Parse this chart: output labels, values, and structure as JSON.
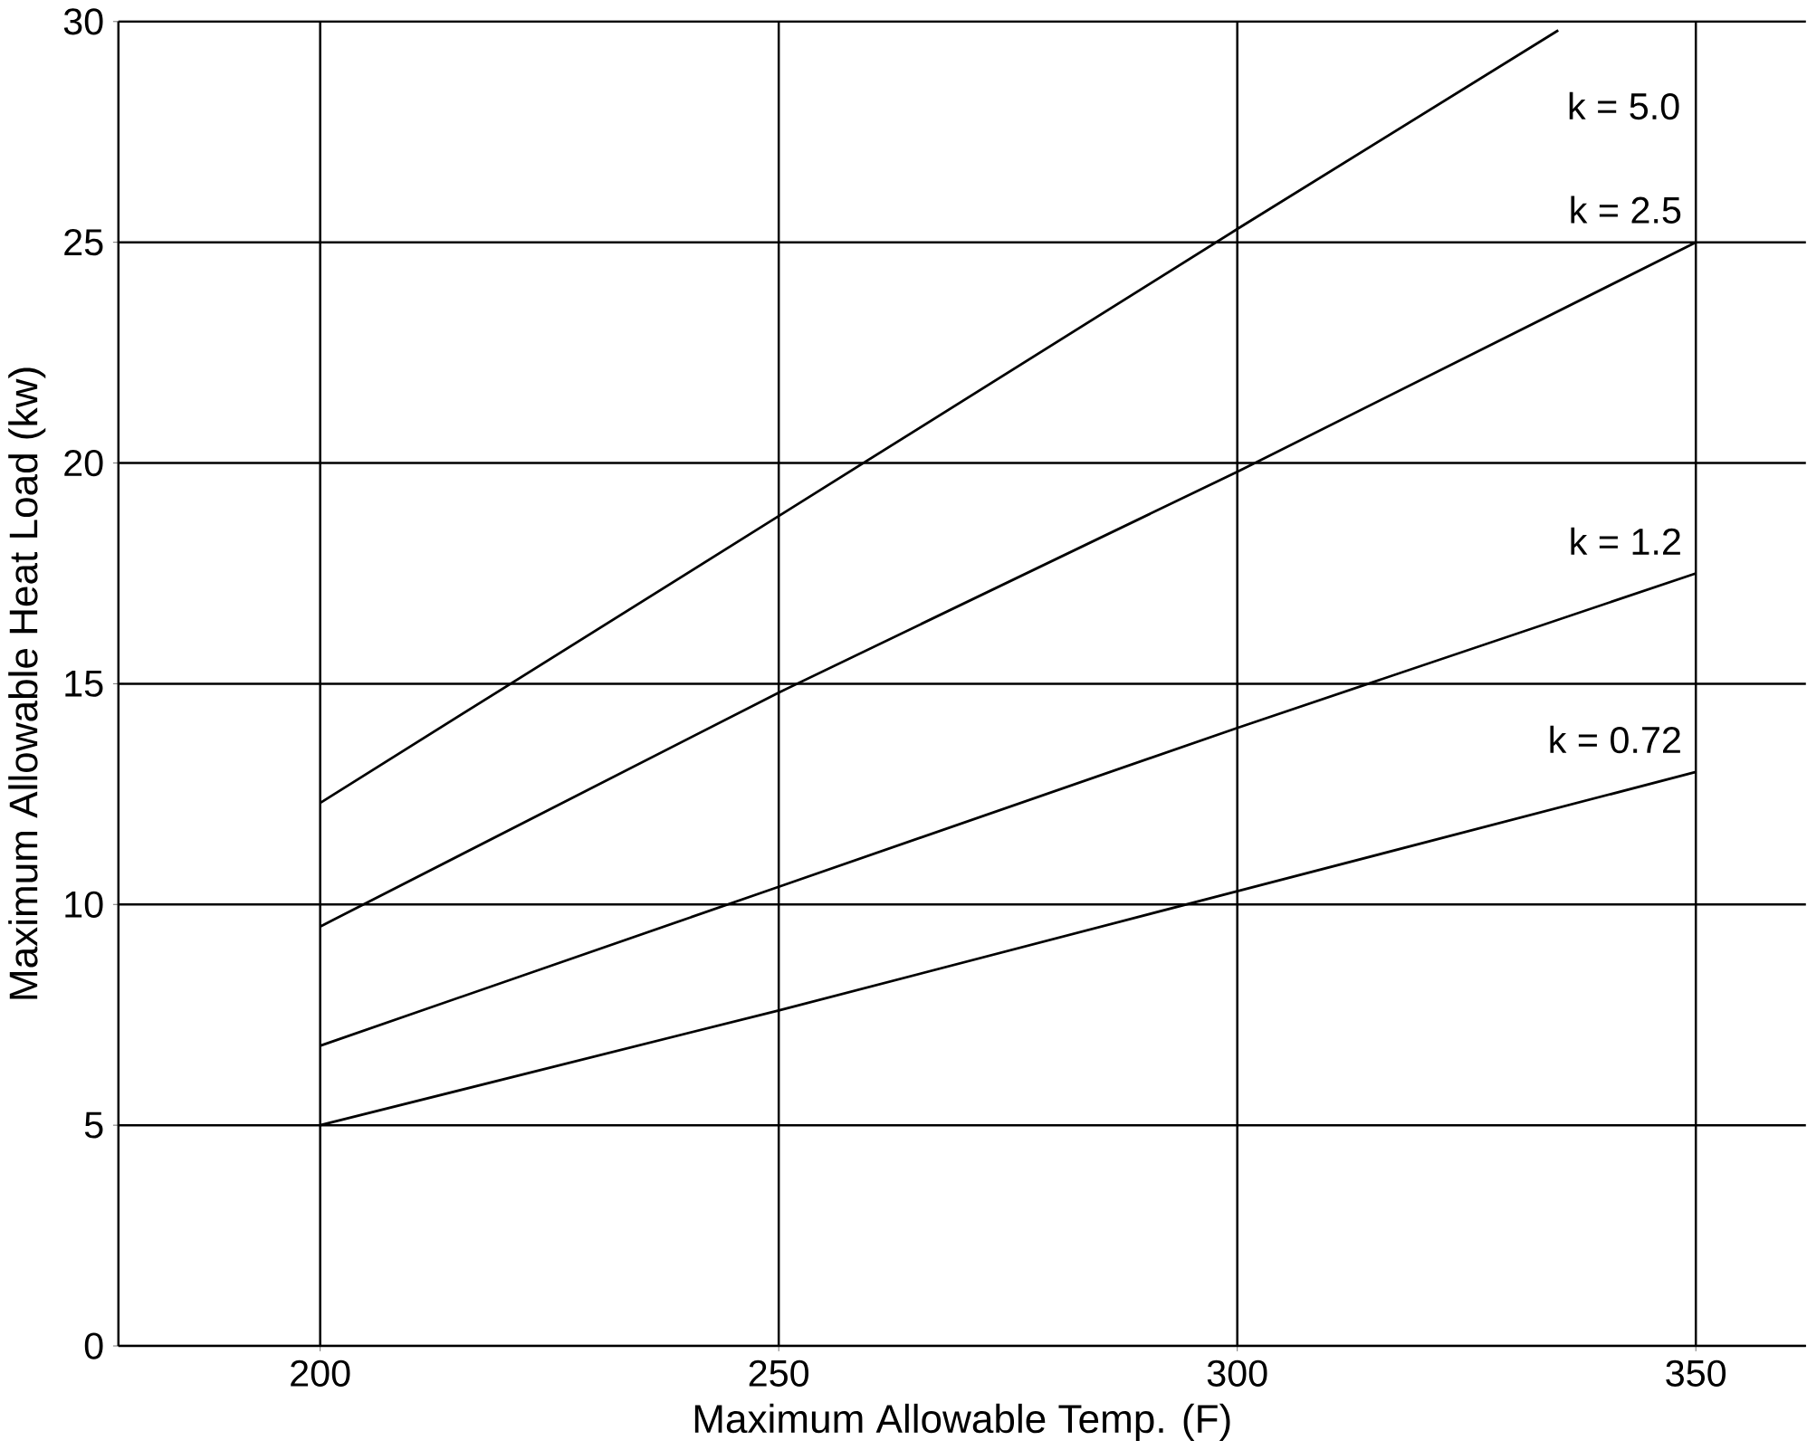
{
  "chart_data": {
    "type": "line",
    "xlabel": "Maximum Allowable Temp. (F)",
    "ylabel": "Maximum Allowable Heat Load (kw)",
    "xlim": [
      178,
      362
    ],
    "ylim": [
      0,
      30
    ],
    "xticks": [
      200,
      250,
      300,
      350
    ],
    "yticks": [
      0,
      5,
      10,
      15,
      20,
      25,
      30
    ],
    "grid": true,
    "legend": false,
    "marker": "none",
    "line_style": "solid",
    "series": [
      {
        "name": "k = 5.0",
        "color": "#000000",
        "x": [
          200,
          250,
          300,
          335
        ],
        "values": [
          12.3,
          18.8,
          25.3,
          29.8
        ]
      },
      {
        "name": "k = 2.5",
        "color": "#000000",
        "x": [
          200,
          250,
          300,
          350
        ],
        "values": [
          9.5,
          14.8,
          19.8,
          25
        ]
      },
      {
        "name": "k = 1.2",
        "color": "#000000",
        "x": [
          200,
          250,
          300,
          350
        ],
        "values": [
          6.8,
          10.4,
          14,
          17.5
        ]
      },
      {
        "name": "k = 0.72",
        "color": "#000000",
        "x": [
          200,
          250,
          300,
          350
        ],
        "values": [
          5,
          7.6,
          10.3,
          13
        ]
      }
    ]
  }
}
